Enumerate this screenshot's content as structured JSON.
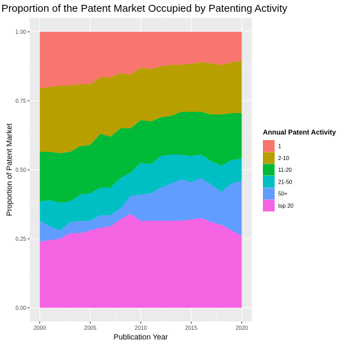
{
  "chart_data": {
    "type": "area",
    "stacked": true,
    "normalized": true,
    "title": "Proportion of the Patent Market Occupied by Patenting Activity",
    "xlabel": "Publication Year",
    "ylabel": "Proportion of Patent Market",
    "xlim": [
      2000,
      2020
    ],
    "ylim": [
      0,
      1
    ],
    "x_ticks": [
      2000,
      2005,
      2010,
      2015,
      2020
    ],
    "y_ticks": [
      0,
      0.25,
      0.5,
      0.75,
      1
    ],
    "y_tick_labels": [
      "0.00",
      "0.25",
      "0.50",
      "0.75",
      "1.00"
    ],
    "grid": true,
    "legend_position": "right",
    "legend_title": "Annual Patent Activity",
    "x": [
      2000,
      2001,
      2002,
      2003,
      2004,
      2005,
      2006,
      2007,
      2008,
      2009,
      2010,
      2011,
      2012,
      2013,
      2014,
      2015,
      2016,
      2017,
      2018,
      2019,
      2020
    ],
    "series": [
      {
        "name": "top 20",
        "color": "#F564E3",
        "values": [
          0.24,
          0.245,
          0.25,
          0.27,
          0.27,
          0.28,
          0.29,
          0.295,
          0.32,
          0.34,
          0.315,
          0.315,
          0.315,
          0.315,
          0.315,
          0.32,
          0.325,
          0.31,
          0.3,
          0.28,
          0.26
        ]
      },
      {
        "name": "50+",
        "color": "#619CFF",
        "values": [
          0.075,
          0.05,
          0.03,
          0.04,
          0.045,
          0.035,
          0.045,
          0.04,
          0.04,
          0.065,
          0.095,
          0.1,
          0.12,
          0.135,
          0.15,
          0.135,
          0.145,
          0.135,
          0.12,
          0.17,
          0.2
        ]
      },
      {
        "name": "21-50",
        "color": "#00BFC4",
        "values": [
          0.07,
          0.095,
          0.1,
          0.075,
          0.095,
          0.1,
          0.1,
          0.1,
          0.11,
          0.085,
          0.115,
          0.105,
          0.115,
          0.105,
          0.09,
          0.095,
          0.085,
          0.085,
          0.095,
          0.085,
          0.08
        ]
      },
      {
        "name": "11-20",
        "color": "#00BA38",
        "values": [
          0.18,
          0.175,
          0.18,
          0.18,
          0.175,
          0.175,
          0.195,
          0.185,
          0.18,
          0.16,
          0.155,
          0.155,
          0.14,
          0.14,
          0.155,
          0.16,
          0.155,
          0.17,
          0.185,
          0.17,
          0.165
        ]
      },
      {
        "name": "2-10",
        "color": "#B79F00",
        "values": [
          0.23,
          0.235,
          0.245,
          0.24,
          0.225,
          0.22,
          0.205,
          0.215,
          0.2,
          0.195,
          0.19,
          0.19,
          0.185,
          0.185,
          0.17,
          0.175,
          0.18,
          0.185,
          0.18,
          0.185,
          0.19
        ]
      },
      {
        "name": "1",
        "color": "#F8766D",
        "values": [
          0.205,
          0.2,
          0.195,
          0.195,
          0.19,
          0.19,
          0.165,
          0.165,
          0.15,
          0.155,
          0.13,
          0.135,
          0.125,
          0.12,
          0.12,
          0.115,
          0.11,
          0.115,
          0.12,
          0.11,
          0.105
        ]
      }
    ],
    "legend_order": [
      "1",
      "2-10",
      "11-20",
      "21-50",
      "50+",
      "top 20"
    ]
  }
}
